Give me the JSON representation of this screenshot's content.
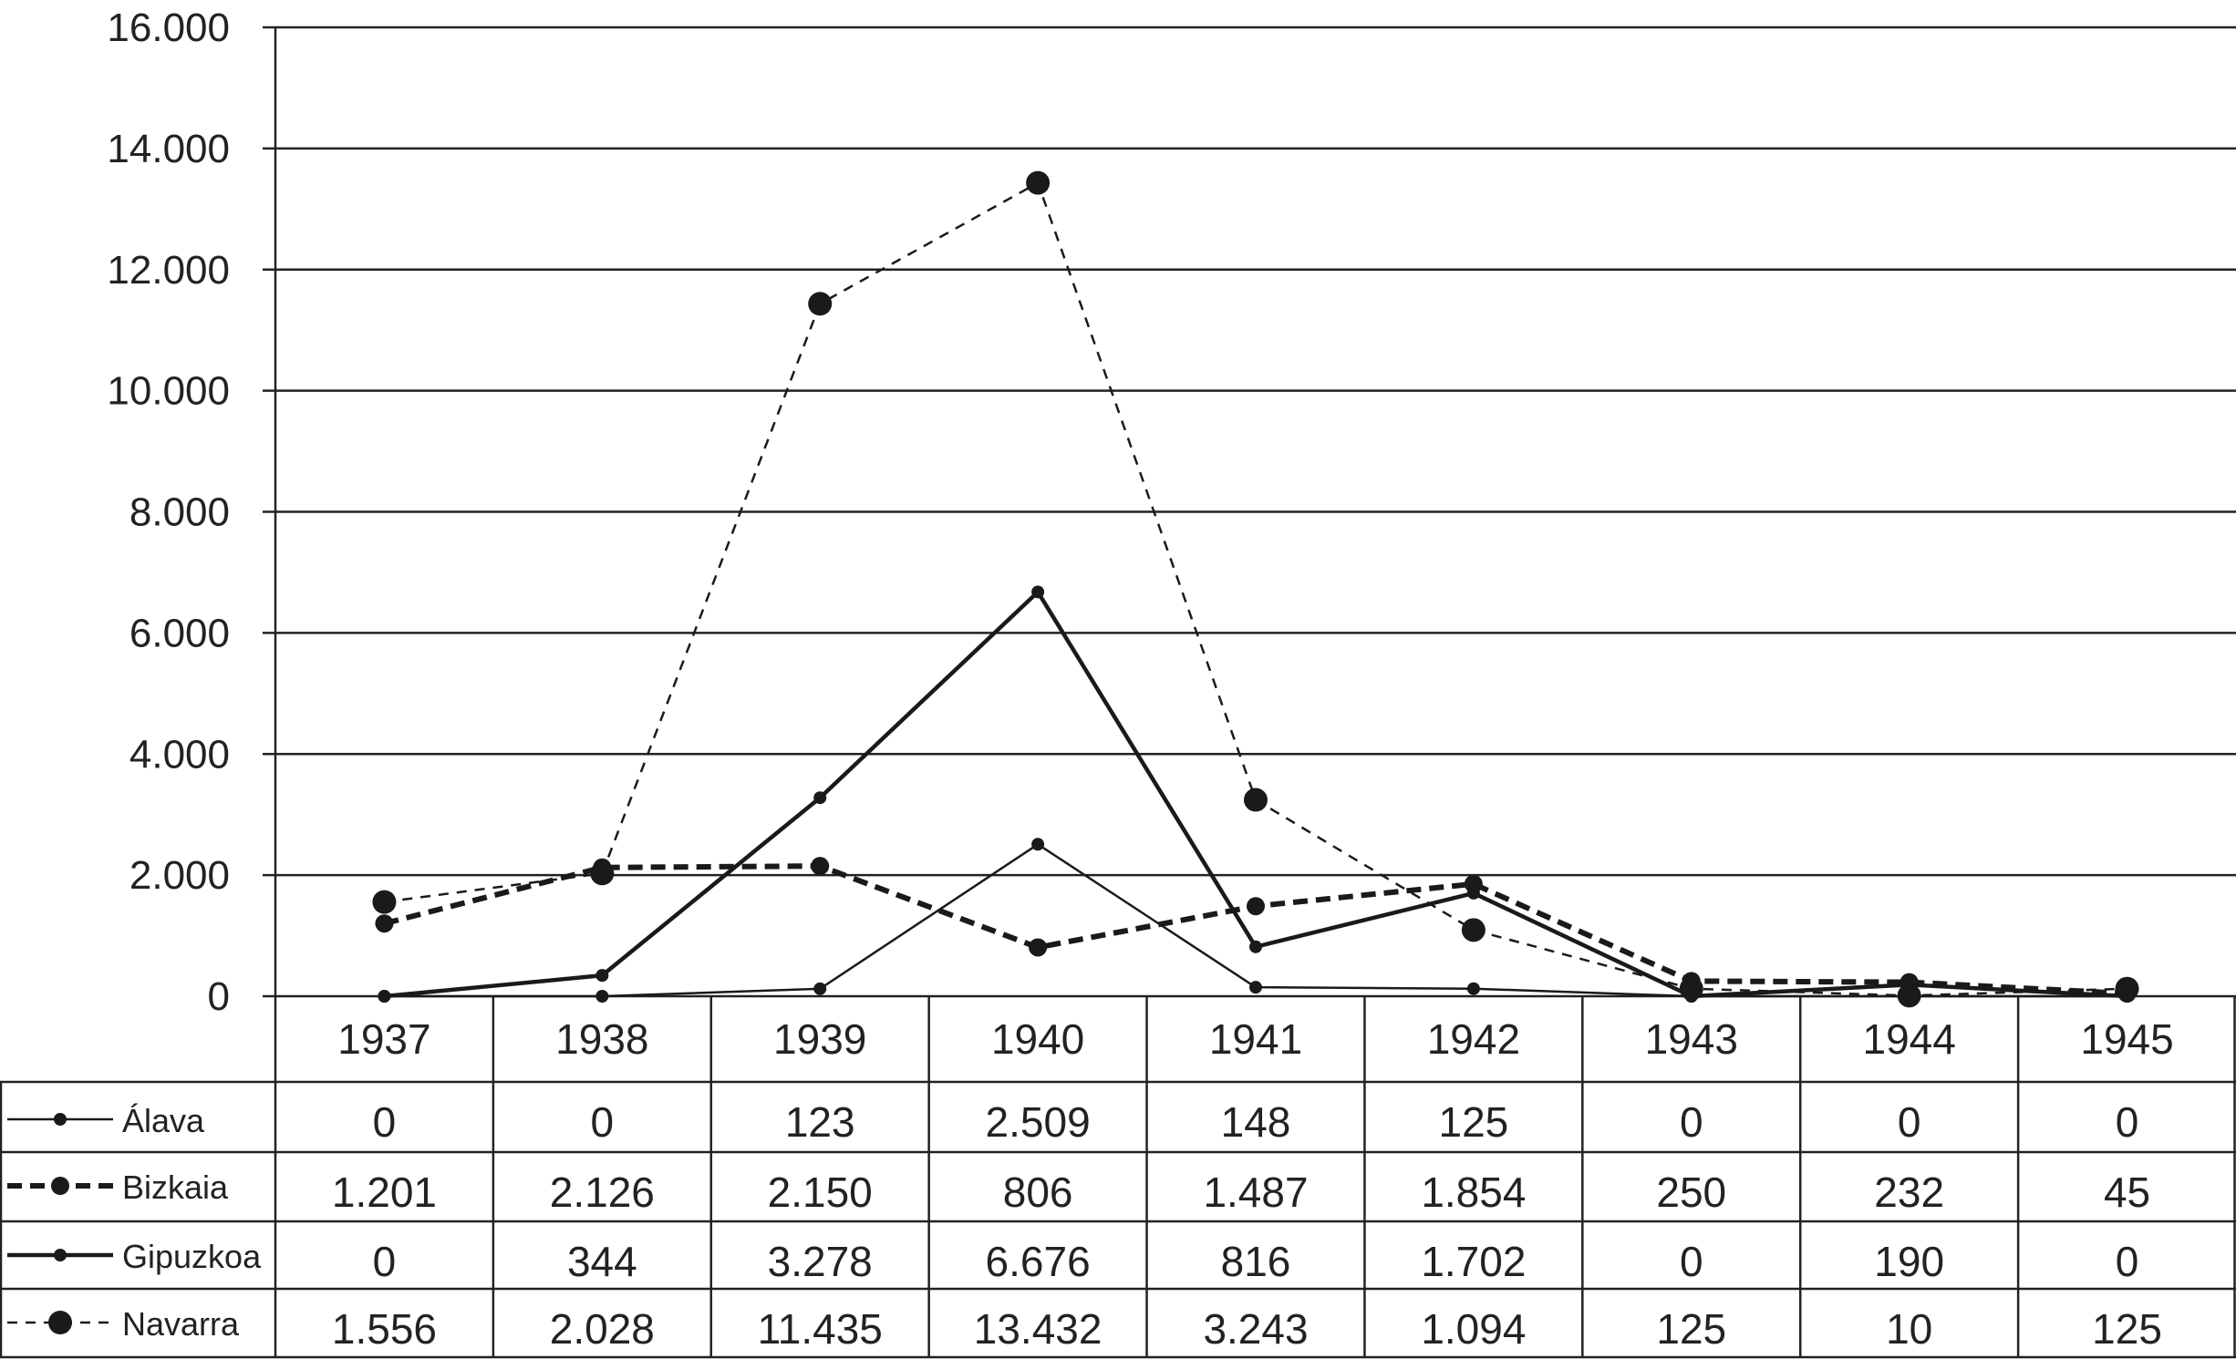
{
  "chart_data": {
    "type": "line",
    "title": "",
    "xlabel": "",
    "ylabel": "",
    "categories": [
      "1937",
      "1938",
      "1939",
      "1940",
      "1941",
      "1942",
      "1943",
      "1944",
      "1945"
    ],
    "ylim": [
      0,
      16000
    ],
    "yticks": [
      0,
      2000,
      4000,
      6000,
      8000,
      10000,
      12000,
      14000,
      16000
    ],
    "ytick_labels": [
      "0",
      "2.000",
      "4.000",
      "6.000",
      "8.000",
      "10.000",
      "12.000",
      "14.000",
      "16.000"
    ],
    "grid": true,
    "legend": "table-left",
    "series": [
      {
        "name": "Álava",
        "line_style": "solid-thin",
        "marker": "small-dot",
        "values": [
          0,
          0,
          123,
          2509,
          148,
          125,
          0,
          0,
          0
        ],
        "labels": [
          "0",
          "0",
          "123",
          "2.509",
          "148",
          "125",
          "0",
          "0",
          "0"
        ]
      },
      {
        "name": "Bizkaia",
        "line_style": "dashed-thick",
        "marker": "medium-dot",
        "values": [
          1201,
          2126,
          2150,
          806,
          1487,
          1854,
          250,
          232,
          45
        ],
        "labels": [
          "1.201",
          "2.126",
          "2.150",
          "806",
          "1.487",
          "1.854",
          "250",
          "232",
          "45"
        ]
      },
      {
        "name": "Gipuzkoa",
        "line_style": "solid-thick",
        "marker": "small-dot",
        "values": [
          0,
          344,
          3278,
          6676,
          816,
          1702,
          0,
          190,
          0
        ],
        "labels": [
          "0",
          "344",
          "3.278",
          "6.676",
          "816",
          "1.702",
          "0",
          "190",
          "0"
        ]
      },
      {
        "name": "Navarra",
        "line_style": "dashed-thin",
        "marker": "large-dot",
        "values": [
          1556,
          2028,
          11435,
          13432,
          3243,
          1094,
          125,
          10,
          125
        ],
        "labels": [
          "1.556",
          "2.028",
          "11.435",
          "13.432",
          "3.243",
          "1.094",
          "125",
          "10",
          "125"
        ]
      }
    ]
  }
}
